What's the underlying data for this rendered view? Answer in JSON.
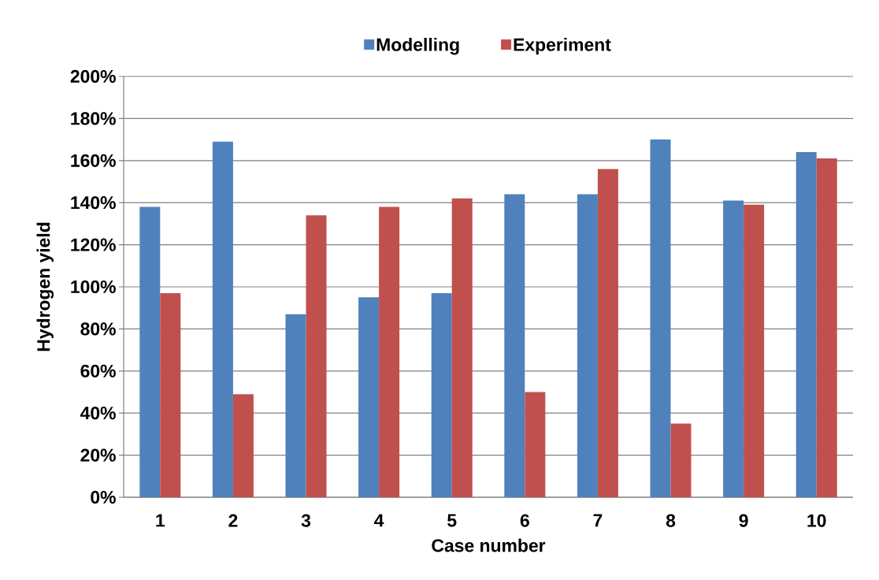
{
  "chart_data": {
    "type": "bar",
    "xlabel": "Case number",
    "ylabel": "Hydrogen yield",
    "categories": [
      "1",
      "2",
      "3",
      "4",
      "5",
      "6",
      "7",
      "8",
      "9",
      "10"
    ],
    "series": [
      {
        "name": "Modelling",
        "color": "#4f81bd",
        "values": [
          138,
          169,
          87,
          95,
          97,
          144,
          144,
          170,
          141,
          164
        ]
      },
      {
        "name": "Experiment",
        "color": "#c0504d",
        "values": [
          97,
          49,
          134,
          138,
          142,
          50,
          156,
          35,
          139,
          161
        ]
      }
    ],
    "ylim": [
      0,
      200
    ],
    "yticks": [
      {
        "value": 0,
        "label": "0%"
      },
      {
        "value": 20,
        "label": "20%"
      },
      {
        "value": 40,
        "label": "40%"
      },
      {
        "value": 60,
        "label": "60%"
      },
      {
        "value": 80,
        "label": "80%"
      },
      {
        "value": 100,
        "label": "100%"
      },
      {
        "value": 120,
        "label": "120%"
      },
      {
        "value": 140,
        "label": "140%"
      },
      {
        "value": 160,
        "label": "160%"
      },
      {
        "value": 180,
        "label": "180%"
      },
      {
        "value": 200,
        "label": "200%"
      }
    ],
    "grid": "y",
    "legend": "top"
  }
}
